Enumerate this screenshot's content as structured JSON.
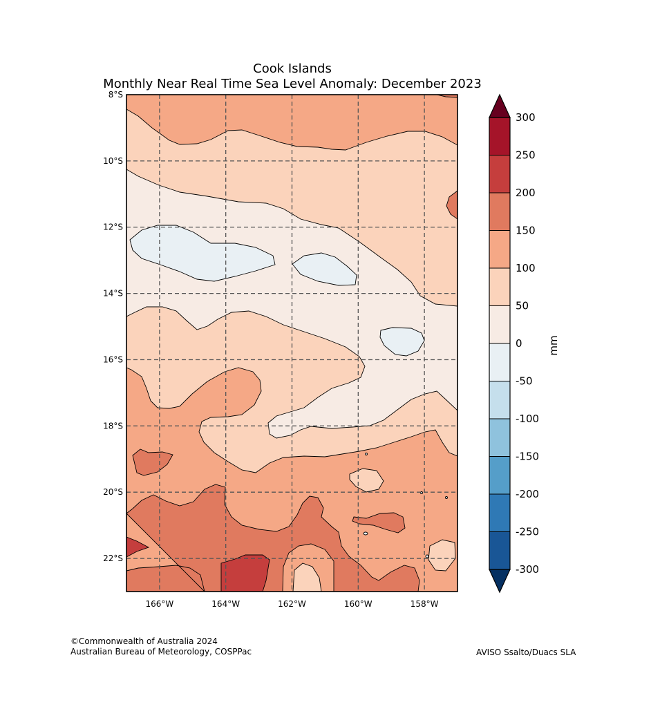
{
  "title_line1": "Cook Islands",
  "title_line2": "Monthly Near Real Time Sea Level Anomaly: December 2023",
  "credits": {
    "line1": "©Commonwealth of Australia 2024",
    "line2": "Australian Bureau of Meteorology, COSPPac",
    "source": "AVISO Ssalto/Duacs SLA"
  },
  "chart_data": {
    "type": "heatmap",
    "region": "Cook Islands",
    "variable": "Sea Level Anomaly",
    "period": "December 2023",
    "lon_range": [
      -167,
      -157
    ],
    "lat_range": [
      -23,
      -8
    ],
    "x_ticks": [
      -166,
      -164,
      -162,
      -160,
      -158
    ],
    "x_tick_labels": [
      "166°W",
      "164°W",
      "162°W",
      "160°W",
      "158°W"
    ],
    "y_ticks": [
      -8,
      -10,
      -12,
      -14,
      -16,
      -18,
      -20,
      -22
    ],
    "y_tick_labels": [
      "8°S",
      "10°S",
      "12°S",
      "14°S",
      "16°S",
      "18°S",
      "20°S",
      "22°S"
    ],
    "grid": true,
    "colorbar": {
      "label": "mm",
      "levels": [
        -300,
        -250,
        -200,
        -150,
        -100,
        -50,
        0,
        50,
        100,
        150,
        200,
        250,
        300
      ],
      "tick_labels": [
        "-300",
        "-250",
        "-200",
        "-150",
        "-100",
        "-50",
        "0",
        "50",
        "100",
        "150",
        "200",
        "250",
        "300"
      ],
      "colors": [
        "#195696",
        "#2f79b5",
        "#559ec9",
        "#8fc2dd",
        "#c5dfec",
        "#e9f0f4",
        "#f7ebe4",
        "#fbd3bb",
        "#f5a886",
        "#e07a5f",
        "#c53e3d",
        "#a51429"
      ],
      "under_color": "#053061",
      "over_color": "#67001f",
      "extend": "both"
    }
  }
}
